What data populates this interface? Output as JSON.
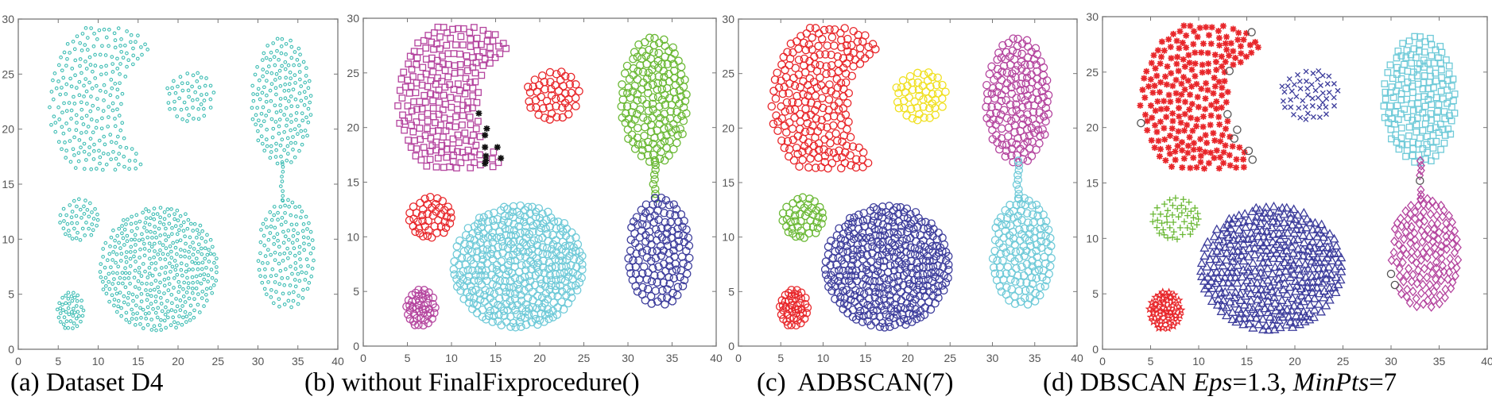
{
  "chart_data": [
    {
      "type": "scatter",
      "caption": "(a) Dataset D4",
      "xlim": [
        0,
        40
      ],
      "ylim": [
        0,
        30
      ],
      "xticks": [
        "0",
        "5",
        "10",
        "15",
        "20",
        "25",
        "30",
        "35",
        "40"
      ],
      "yticks": [
        "0",
        "5",
        "10",
        "15",
        "20",
        "25",
        "30"
      ],
      "grid": false,
      "legend": "none",
      "series": [
        {
          "cluster": "crescent",
          "marker": "dot",
          "color": "#3fbdb4"
        },
        {
          "cluster": "top_small",
          "marker": "dot",
          "color": "#3fbdb4"
        },
        {
          "cluster": "right_upper",
          "marker": "dot",
          "color": "#3fbdb4"
        },
        {
          "cluster": "bridge",
          "marker": "dot",
          "color": "#3fbdb4"
        },
        {
          "cluster": "right_lower",
          "marker": "dot",
          "color": "#3fbdb4"
        },
        {
          "cluster": "left_mid",
          "marker": "dot",
          "color": "#3fbdb4"
        },
        {
          "cluster": "big_bottom",
          "marker": "dot",
          "color": "#3fbdb4"
        },
        {
          "cluster": "bottom_left",
          "marker": "dot",
          "color": "#3fbdb4"
        }
      ]
    },
    {
      "type": "scatter",
      "caption": "(b) without FinalFixprocedure()",
      "xlim": [
        0,
        40
      ],
      "ylim": [
        0,
        30
      ],
      "xticks": [
        "0",
        "5",
        "10",
        "15",
        "20",
        "25",
        "30",
        "35",
        "40"
      ],
      "yticks": [
        "0",
        "5",
        "10",
        "15",
        "20",
        "25",
        "30"
      ],
      "grid": false,
      "legend": "none",
      "series": [
        {
          "cluster": "crescent",
          "marker": "square",
          "color": "#b4449e"
        },
        {
          "cluster": "top_small",
          "marker": "circle",
          "color": "#e8262a"
        },
        {
          "cluster": "right_upper",
          "marker": "circle",
          "color": "#6ab834"
        },
        {
          "cluster": "bridge",
          "marker": "circle",
          "color": "#6ab834"
        },
        {
          "cluster": "right_lower",
          "marker": "circle",
          "color": "#3d3d9c"
        },
        {
          "cluster": "left_mid",
          "marker": "circle",
          "color": "#e8262a"
        },
        {
          "cluster": "big_bottom",
          "marker": "circle",
          "color": "#6fcad8"
        },
        {
          "cluster": "bottom_left",
          "marker": "circle",
          "color": "#b4449e"
        },
        {
          "cluster": "unassigned",
          "marker": "asterisk",
          "color": "#111111",
          "points": [
            [
              13.1,
              21.3
            ],
            [
              14.0,
              19.9
            ],
            [
              13.8,
              19.3
            ],
            [
              13.8,
              18.2
            ],
            [
              15.2,
              18.2
            ],
            [
              15.6,
              17.2
            ],
            [
              13.9,
              17.4
            ],
            [
              13.8,
              16.7
            ],
            [
              13.9,
              17.0
            ]
          ]
        }
      ]
    },
    {
      "type": "scatter",
      "caption": "(c)  ADBSCAN(7)",
      "xlim": [
        0,
        40
      ],
      "ylim": [
        0,
        30
      ],
      "xticks": [
        "0",
        "5",
        "10",
        "15",
        "20",
        "25",
        "30",
        "35",
        "40"
      ],
      "yticks": [
        "0",
        "5",
        "10",
        "15",
        "20",
        "25",
        "30"
      ],
      "grid": false,
      "legend": "none",
      "series": [
        {
          "cluster": "crescent",
          "marker": "circle",
          "color": "#e8262a"
        },
        {
          "cluster": "top_small",
          "marker": "circle",
          "color": "#f0e020"
        },
        {
          "cluster": "right_upper",
          "marker": "circle",
          "color": "#b4449e"
        },
        {
          "cluster": "bridge",
          "marker": "circle",
          "color": "#6fcad8"
        },
        {
          "cluster": "right_lower",
          "marker": "circle",
          "color": "#6fcad8"
        },
        {
          "cluster": "left_mid",
          "marker": "circle",
          "color": "#6ab834"
        },
        {
          "cluster": "big_bottom",
          "marker": "circle",
          "color": "#3d3d9c"
        },
        {
          "cluster": "bottom_left",
          "marker": "circle",
          "color": "#e8262a"
        }
      ]
    },
    {
      "type": "scatter",
      "caption": "(d) DBSCAN ",
      "caption_eps_label": "Eps",
      "caption_eps_value": "=1.3, ",
      "caption_minpts_label": "MinPts",
      "caption_minpts_value": "=7",
      "xlim": [
        0,
        40
      ],
      "ylim": [
        0,
        30
      ],
      "xticks": [
        "0",
        "5",
        "10",
        "15",
        "20",
        "25",
        "30",
        "35",
        "40"
      ],
      "yticks": [
        "0",
        "5",
        "10",
        "15",
        "20",
        "25",
        "30"
      ],
      "grid": false,
      "legend": "none",
      "series": [
        {
          "cluster": "crescent",
          "marker": "asterisk",
          "color": "#e8262a"
        },
        {
          "cluster": "top_small",
          "marker": "x",
          "color": "#3d3d9c"
        },
        {
          "cluster": "right_upper",
          "marker": "square",
          "color": "#6fcad8"
        },
        {
          "cluster": "bridge",
          "marker": "diamond",
          "color": "#b4449e"
        },
        {
          "cluster": "right_lower",
          "marker": "diamond",
          "color": "#b4449e"
        },
        {
          "cluster": "left_mid",
          "marker": "plus",
          "color": "#6ab834"
        },
        {
          "cluster": "big_bottom",
          "marker": "triangle",
          "color": "#3d3d9c"
        },
        {
          "cluster": "bottom_left",
          "marker": "star",
          "color": "#e8262a"
        },
        {
          "cluster": "noise",
          "marker": "circle",
          "color": "#555555",
          "points": [
            [
              15.5,
              28.6
            ],
            [
              13.2,
              25.1
            ],
            [
              13.0,
              21.2
            ],
            [
              4.0,
              20.4
            ],
            [
              14.0,
              19.8
            ],
            [
              13.7,
              19.0
            ],
            [
              15.2,
              17.9
            ],
            [
              15.6,
              17.1
            ],
            [
              33.0,
              15.2
            ],
            [
              30.0,
              6.8
            ],
            [
              30.4,
              5.8
            ]
          ]
        }
      ]
    }
  ],
  "clusters": {
    "crescent": {
      "center": [
        11,
        22.5
      ],
      "radius": 7.2,
      "cut_center": [
        18.5,
        22
      ],
      "cut_radius": 5.6,
      "y_range": [
        16.3,
        29.2
      ],
      "count": 230
    },
    "top_small": {
      "center": [
        21.5,
        23
      ],
      "rx": 3.0,
      "ry": 2.3,
      "count": 50
    },
    "right_upper": {
      "center": [
        33,
        22.5
      ],
      "rx": 3.8,
      "ry": 5.8,
      "count": 170
    },
    "bridge": {
      "x": 33,
      "y_range": [
        13.5,
        17
      ],
      "count": 9
    },
    "right_lower": {
      "center": [
        33.5,
        8.6
      ],
      "rx": 3.5,
      "ry": 5.0,
      "count": 140
    },
    "left_mid": {
      "center": [
        7.6,
        11.8
      ],
      "rx": 2.4,
      "ry": 1.9,
      "count": 45
    },
    "big_bottom": {
      "center": [
        17.6,
        7.3
      ],
      "rx": 7.4,
      "ry": 5.6,
      "count": 400
    },
    "bottom_left": {
      "center": [
        6.5,
        3.5
      ],
      "rx": 1.7,
      "ry": 1.7,
      "count": 45
    }
  }
}
